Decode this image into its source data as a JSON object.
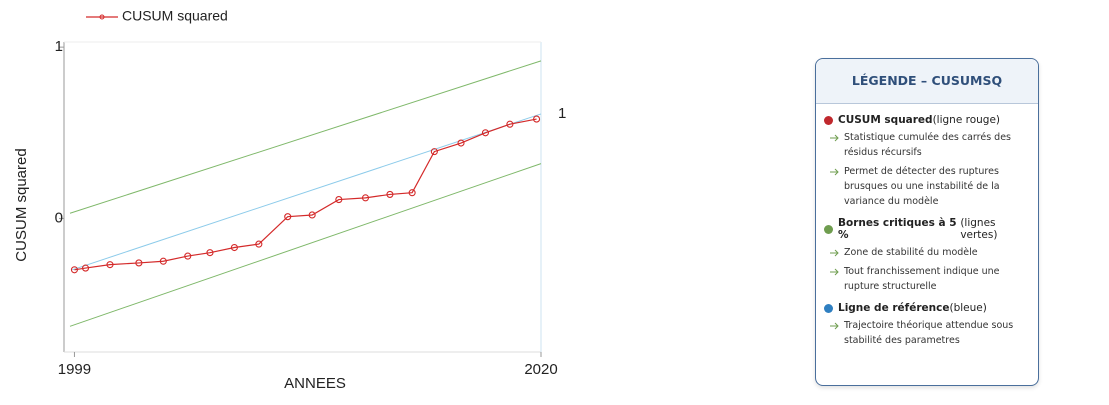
{
  "chart_data": {
    "type": "line",
    "ylabel": "CUSUM squared",
    "xlabel": "ANNEES",
    "annotation": "1",
    "xlim": [
      1998.8,
      2020.0
    ],
    "xticks": [
      1999,
      2020
    ],
    "ylim": [
      -0.78,
      1.03
    ],
    "yticks": [
      1,
      0
    ],
    "series": [
      {
        "name": "CUSUM squared",
        "color": "#d42a2a",
        "x": [
          1999.0,
          1999.5,
          2000.6,
          2001.9,
          2003.0,
          2004.1,
          2005.1,
          2006.2,
          2007.3,
          2008.6,
          2009.7,
          2010.9,
          2012.1,
          2013.2,
          2014.2,
          2015.2,
          2016.4,
          2017.5,
          2018.6,
          2019.8
        ],
        "values": [
          -0.3,
          -0.29,
          -0.27,
          -0.26,
          -0.25,
          -0.22,
          -0.2,
          -0.17,
          -0.15,
          0.01,
          0.02,
          0.11,
          0.12,
          0.14,
          0.15,
          0.39,
          0.44,
          0.5,
          0.55,
          0.58
        ]
      }
    ],
    "lines": [
      {
        "color": "#8ccbea",
        "x": [
          1998.9,
          2020.0
        ],
        "values": [
          -0.3,
          0.61
        ]
      },
      {
        "color": "#7fb86a",
        "x": [
          1998.8,
          2020.0
        ],
        "values": [
          0.03,
          0.92
        ]
      },
      {
        "color": "#7fb86a",
        "x": [
          1998.8,
          2020.0
        ],
        "values": [
          -0.63,
          0.32
        ]
      }
    ]
  },
  "legend_panel": {
    "title": "LÉGENDE – CUSUMSQ",
    "items": [
      {
        "color": "#c0282d",
        "label": "CUSUM squared",
        "note": " (ligne rouge)",
        "bullets": [
          "Statistique cumulée des carrés des résidus récursifs",
          "Permet de détecter des ruptures brusques ou une instabilité de la variance du modèle"
        ]
      },
      {
        "color": "#6f9d4f",
        "label": "Bornes critiques à 5 %",
        "note": " (lignes vertes)",
        "bullets": [
          "Zone de stabilité du modèle",
          "Tout franchissement indique une rupture structurelle"
        ]
      },
      {
        "color": "#2f7fc1",
        "label": "Ligne de référence",
        "note": "(bleue)",
        "bullets": [
          "Trajectoire théorique attendue sous stabilité des parametres"
        ]
      }
    ]
  }
}
